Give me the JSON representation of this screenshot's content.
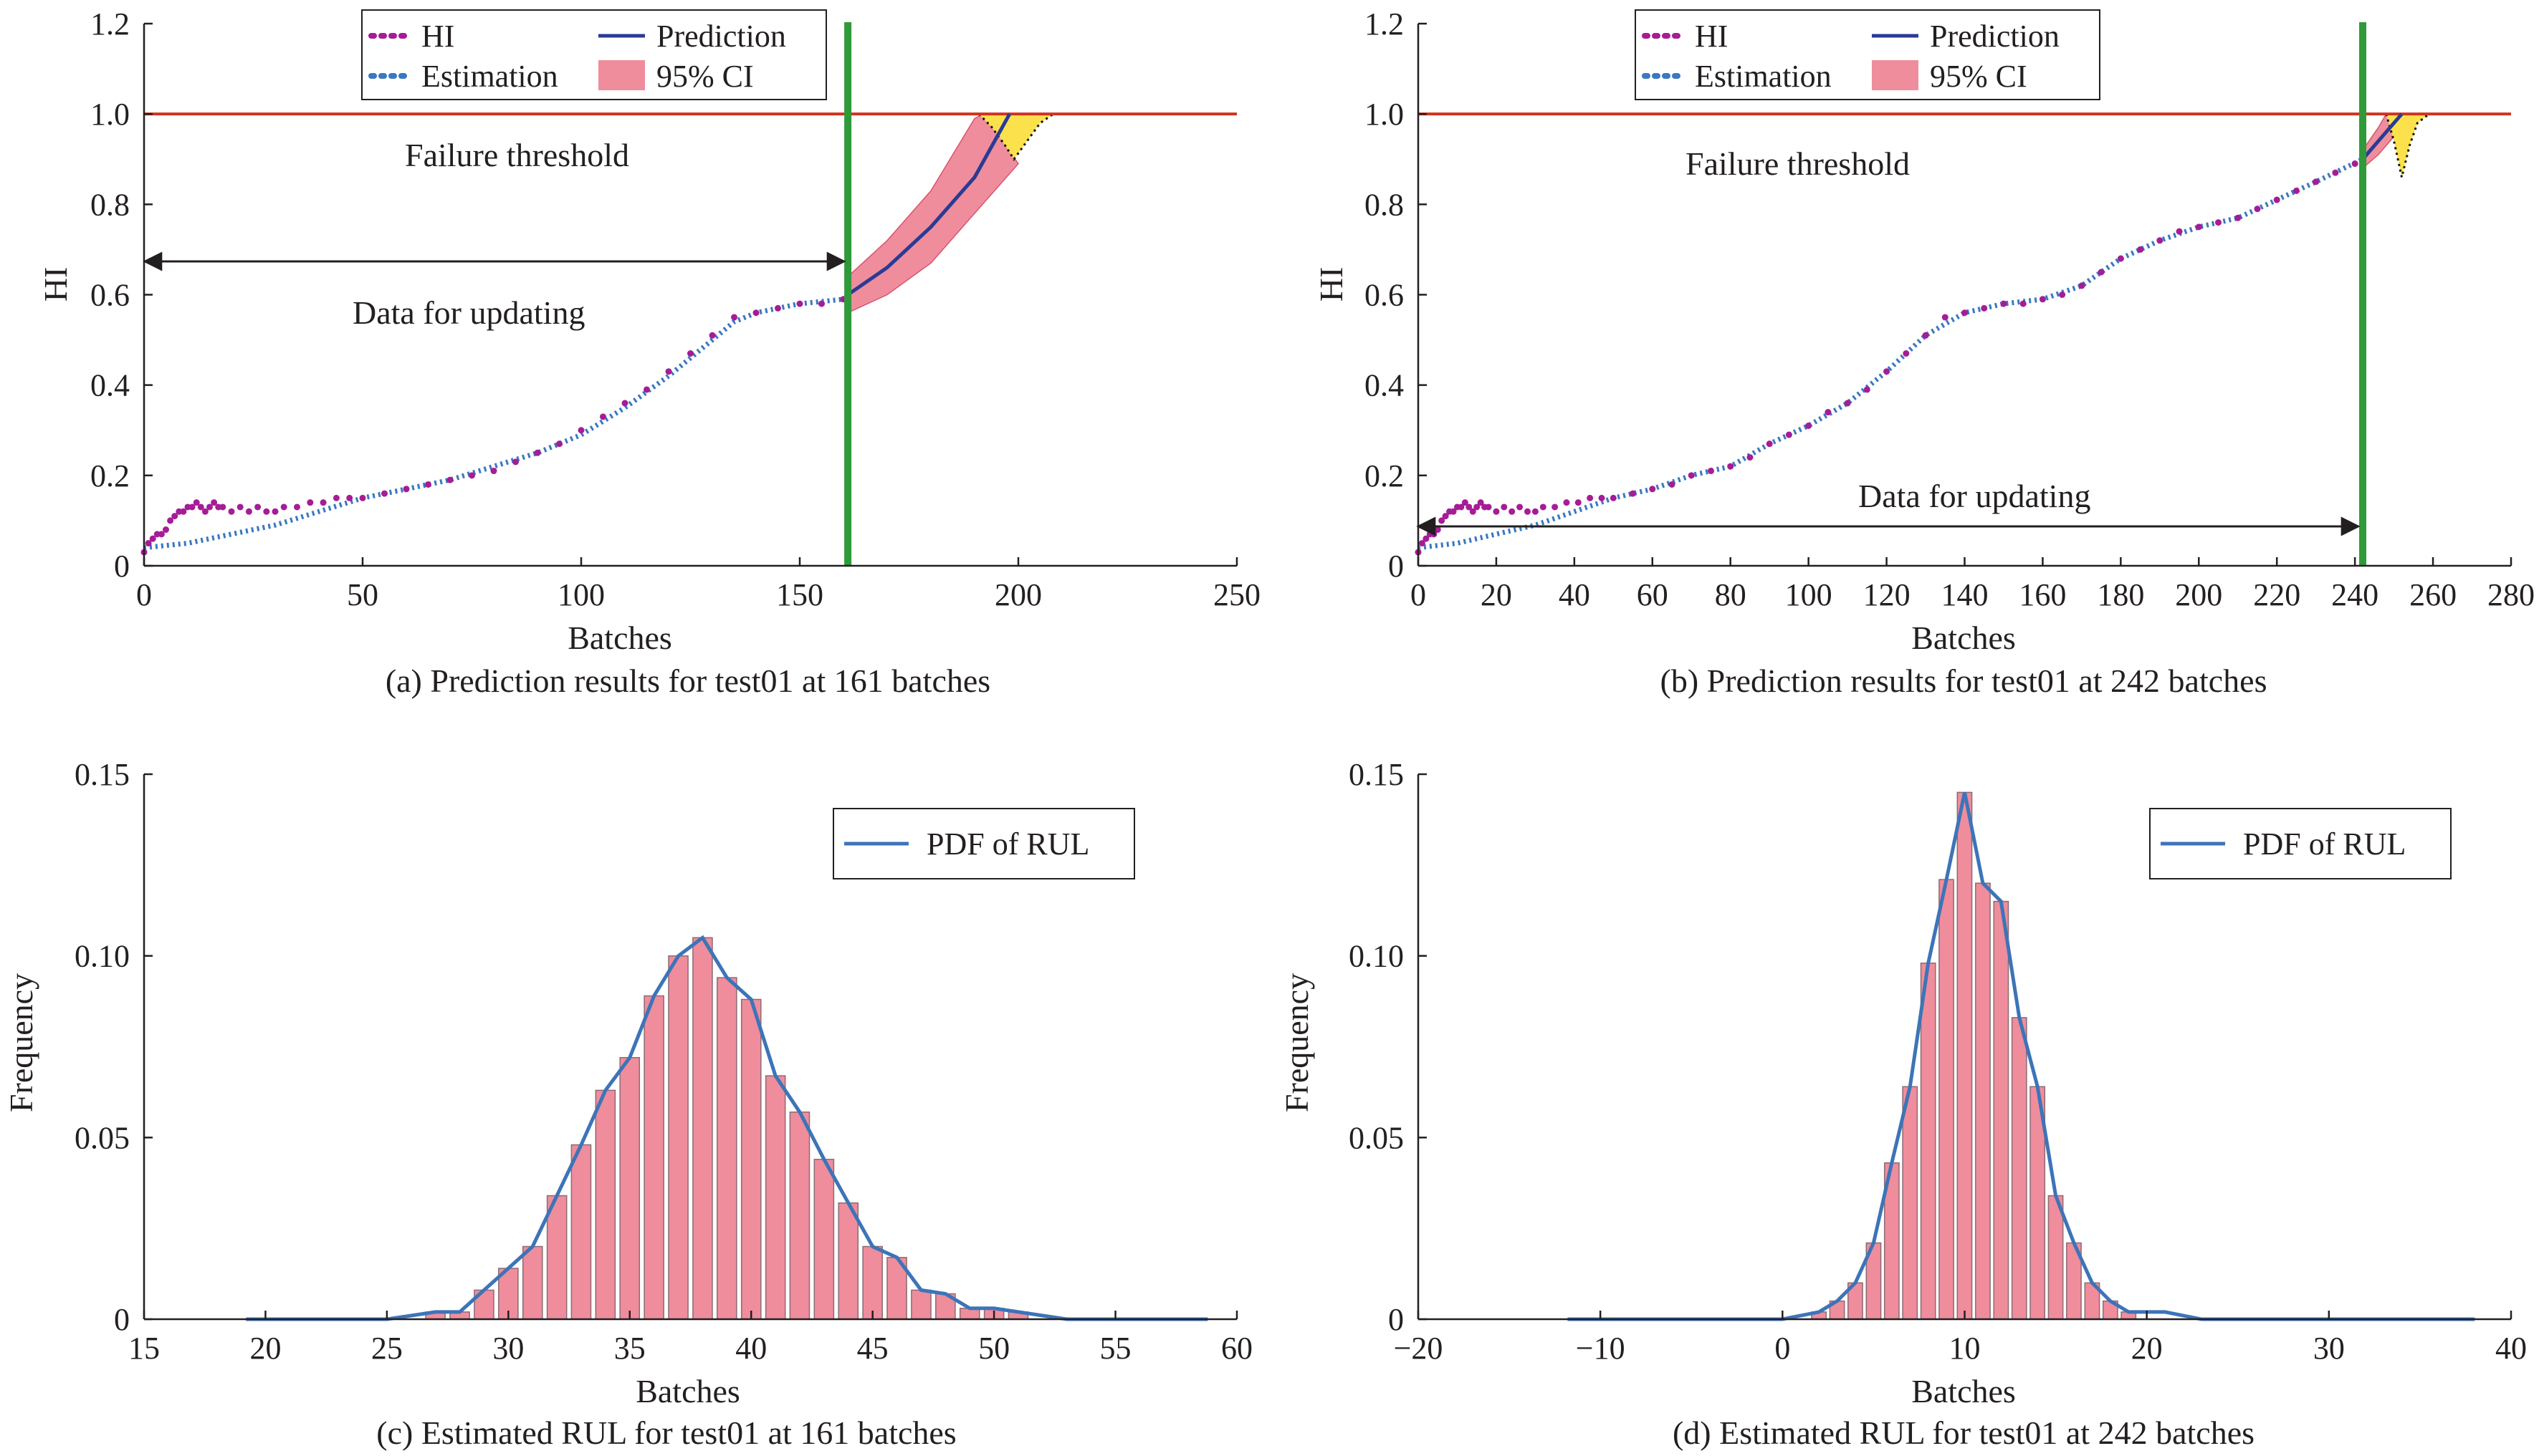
{
  "colors": {
    "hi": "#a61c96",
    "estimation": "#3a78c2",
    "prediction": "#2a3b93",
    "ci_fill": "#ef8d9d",
    "ci_edge": "#d9556c",
    "pdf_fill": "#fbe24d",
    "threshold": "#d0331e",
    "cutoff": "#2f9a3a",
    "hist_fill": "#ef8d9d",
    "hist_edge": "#8c6a72",
    "pdf_line": "#3d74b8",
    "axis": "#231f20"
  },
  "chart_data": [
    {
      "id": "a",
      "type": "line",
      "caption": "(a) Prediction results for test01 at 161 batches",
      "xlabel": "Batches",
      "ylabel": "HI",
      "xlim": [
        0,
        250
      ],
      "ylim": [
        0,
        1.2
      ],
      "xticks": [
        0,
        50,
        100,
        150,
        200,
        250
      ],
      "xtick_labels": [
        "0",
        "50",
        "100",
        "150",
        "200",
        "250"
      ],
      "yticks": [
        0,
        0.2,
        0.4,
        0.6,
        0.8,
        1.0,
        1.2
      ],
      "ytick_labels": [
        "0",
        "0.2",
        "0.4",
        "0.6",
        "0.8",
        "1.0",
        "1.2"
      ],
      "legend": [
        "HI",
        "Prediction",
        "Estimation",
        "95% CI"
      ],
      "annotations": [
        "Failure threshold",
        "Data for updating"
      ],
      "failure_threshold": 1.0,
      "update_batch": 161,
      "hi_points": [
        [
          0,
          0.03
        ],
        [
          1,
          0.05
        ],
        [
          2,
          0.06
        ],
        [
          3,
          0.07
        ],
        [
          4,
          0.07
        ],
        [
          5,
          0.08
        ],
        [
          6,
          0.1
        ],
        [
          7,
          0.11
        ],
        [
          8,
          0.12
        ],
        [
          9,
          0.12
        ],
        [
          10,
          0.13
        ],
        [
          11,
          0.13
        ],
        [
          12,
          0.14
        ],
        [
          13,
          0.13
        ],
        [
          14,
          0.12
        ],
        [
          15,
          0.13
        ],
        [
          16,
          0.14
        ],
        [
          17,
          0.13
        ],
        [
          18,
          0.13
        ],
        [
          20,
          0.12
        ],
        [
          22,
          0.13
        ],
        [
          24,
          0.12
        ],
        [
          26,
          0.13
        ],
        [
          28,
          0.12
        ],
        [
          30,
          0.12
        ],
        [
          32,
          0.13
        ],
        [
          35,
          0.13
        ],
        [
          38,
          0.14
        ],
        [
          41,
          0.14
        ],
        [
          44,
          0.15
        ],
        [
          47,
          0.15
        ],
        [
          50,
          0.15
        ],
        [
          55,
          0.16
        ],
        [
          60,
          0.17
        ],
        [
          65,
          0.18
        ],
        [
          70,
          0.19
        ],
        [
          75,
          0.2
        ],
        [
          80,
          0.21
        ],
        [
          85,
          0.23
        ],
        [
          90,
          0.25
        ],
        [
          95,
          0.27
        ],
        [
          100,
          0.3
        ],
        [
          105,
          0.33
        ],
        [
          110,
          0.36
        ],
        [
          115,
          0.39
        ],
        [
          120,
          0.43
        ],
        [
          125,
          0.47
        ],
        [
          130,
          0.51
        ],
        [
          135,
          0.55
        ],
        [
          140,
          0.56
        ],
        [
          145,
          0.57
        ],
        [
          150,
          0.58
        ],
        [
          155,
          0.58
        ],
        [
          160,
          0.59
        ]
      ],
      "estimation": [
        [
          0,
          0.04
        ],
        [
          10,
          0.05
        ],
        [
          20,
          0.07
        ],
        [
          30,
          0.09
        ],
        [
          40,
          0.12
        ],
        [
          50,
          0.15
        ],
        [
          60,
          0.17
        ],
        [
          70,
          0.19
        ],
        [
          80,
          0.22
        ],
        [
          90,
          0.25
        ],
        [
          100,
          0.29
        ],
        [
          110,
          0.35
        ],
        [
          120,
          0.42
        ],
        [
          130,
          0.5
        ],
        [
          135,
          0.54
        ],
        [
          140,
          0.56
        ],
        [
          150,
          0.58
        ],
        [
          160,
          0.59
        ]
      ],
      "prediction": [
        [
          161,
          0.6
        ],
        [
          170,
          0.66
        ],
        [
          180,
          0.75
        ],
        [
          190,
          0.86
        ],
        [
          198,
          1.0
        ]
      ],
      "ci_upper": [
        [
          161,
          0.64
        ],
        [
          170,
          0.72
        ],
        [
          180,
          0.83
        ],
        [
          190,
          0.99
        ],
        [
          192,
          1.0
        ]
      ],
      "ci_lower": [
        [
          161,
          0.56
        ],
        [
          170,
          0.6
        ],
        [
          180,
          0.67
        ],
        [
          190,
          0.78
        ],
        [
          200,
          0.89
        ]
      ],
      "rul_pdf": [
        [
          191,
          1.0
        ],
        [
          194,
          0.97
        ],
        [
          197,
          0.93
        ],
        [
          199,
          0.9
        ],
        [
          202,
          0.94
        ],
        [
          205,
          0.98
        ],
        [
          208,
          1.0
        ]
      ]
    },
    {
      "id": "b",
      "type": "line",
      "caption": "(b) Prediction results for test01 at 242 batches",
      "xlabel": "Batches",
      "ylabel": "HI",
      "xlim": [
        0,
        280
      ],
      "ylim": [
        0,
        1.2
      ],
      "xticks": [
        0,
        20,
        40,
        60,
        80,
        100,
        120,
        140,
        160,
        180,
        200,
        220,
        240,
        260,
        280
      ],
      "xtick_labels": [
        "0",
        "20",
        "40",
        "60",
        "80",
        "100",
        "120",
        "140",
        "160",
        "180",
        "200",
        "220",
        "240",
        "260",
        "280"
      ],
      "yticks": [
        0,
        0.2,
        0.4,
        0.6,
        0.8,
        1.0,
        1.2
      ],
      "ytick_labels": [
        "0",
        "0.2",
        "0.4",
        "0.6",
        "0.8",
        "1.0",
        "1.2"
      ],
      "legend": [
        "HI",
        "Prediction",
        "Estimation",
        "95% CI"
      ],
      "annotations": [
        "Failure threshold",
        "Data for updating"
      ],
      "failure_threshold": 1.0,
      "update_batch": 242,
      "hi_points": [
        [
          0,
          0.03
        ],
        [
          1,
          0.05
        ],
        [
          2,
          0.06
        ],
        [
          3,
          0.07
        ],
        [
          4,
          0.07
        ],
        [
          5,
          0.08
        ],
        [
          6,
          0.1
        ],
        [
          7,
          0.11
        ],
        [
          8,
          0.12
        ],
        [
          9,
          0.12
        ],
        [
          10,
          0.13
        ],
        [
          11,
          0.13
        ],
        [
          12,
          0.14
        ],
        [
          13,
          0.13
        ],
        [
          14,
          0.12
        ],
        [
          15,
          0.13
        ],
        [
          16,
          0.14
        ],
        [
          17,
          0.13
        ],
        [
          18,
          0.13
        ],
        [
          20,
          0.12
        ],
        [
          22,
          0.13
        ],
        [
          24,
          0.12
        ],
        [
          26,
          0.13
        ],
        [
          28,
          0.12
        ],
        [
          30,
          0.12
        ],
        [
          32,
          0.13
        ],
        [
          35,
          0.13
        ],
        [
          38,
          0.14
        ],
        [
          41,
          0.14
        ],
        [
          44,
          0.15
        ],
        [
          47,
          0.15
        ],
        [
          50,
          0.15
        ],
        [
          55,
          0.16
        ],
        [
          60,
          0.17
        ],
        [
          65,
          0.18
        ],
        [
          70,
          0.2
        ],
        [
          75,
          0.21
        ],
        [
          80,
          0.22
        ],
        [
          85,
          0.24
        ],
        [
          90,
          0.27
        ],
        [
          95,
          0.29
        ],
        [
          100,
          0.31
        ],
        [
          105,
          0.34
        ],
        [
          110,
          0.36
        ],
        [
          115,
          0.39
        ],
        [
          120,
          0.43
        ],
        [
          125,
          0.47
        ],
        [
          130,
          0.51
        ],
        [
          135,
          0.55
        ],
        [
          140,
          0.56
        ],
        [
          145,
          0.57
        ],
        [
          150,
          0.58
        ],
        [
          155,
          0.58
        ],
        [
          160,
          0.59
        ],
        [
          165,
          0.6
        ],
        [
          170,
          0.62
        ],
        [
          175,
          0.65
        ],
        [
          180,
          0.68
        ],
        [
          185,
          0.7
        ],
        [
          190,
          0.72
        ],
        [
          195,
          0.74
        ],
        [
          200,
          0.75
        ],
        [
          205,
          0.76
        ],
        [
          210,
          0.77
        ],
        [
          215,
          0.79
        ],
        [
          220,
          0.81
        ],
        [
          225,
          0.83
        ],
        [
          230,
          0.85
        ],
        [
          235,
          0.87
        ],
        [
          240,
          0.89
        ],
        [
          242,
          0.9
        ]
      ],
      "estimation": [
        [
          0,
          0.04
        ],
        [
          10,
          0.05
        ],
        [
          20,
          0.07
        ],
        [
          30,
          0.09
        ],
        [
          40,
          0.12
        ],
        [
          50,
          0.15
        ],
        [
          60,
          0.17
        ],
        [
          70,
          0.2
        ],
        [
          80,
          0.22
        ],
        [
          90,
          0.27
        ],
        [
          100,
          0.31
        ],
        [
          110,
          0.36
        ],
        [
          120,
          0.43
        ],
        [
          130,
          0.51
        ],
        [
          140,
          0.56
        ],
        [
          150,
          0.58
        ],
        [
          160,
          0.59
        ],
        [
          170,
          0.62
        ],
        [
          180,
          0.68
        ],
        [
          190,
          0.72
        ],
        [
          200,
          0.75
        ],
        [
          210,
          0.77
        ],
        [
          220,
          0.81
        ],
        [
          230,
          0.85
        ],
        [
          242,
          0.9
        ]
      ],
      "prediction": [
        [
          242,
          0.9
        ],
        [
          246,
          0.94
        ],
        [
          250,
          0.98
        ],
        [
          252,
          1.0
        ]
      ],
      "ci_upper": [
        [
          242,
          0.92
        ],
        [
          246,
          0.97
        ],
        [
          248,
          1.0
        ]
      ],
      "ci_lower": [
        [
          242,
          0.88
        ],
        [
          246,
          0.91
        ],
        [
          250,
          0.95
        ],
        [
          254,
          0.98
        ],
        [
          256,
          1.0
        ]
      ],
      "rul_pdf": [
        [
          248,
          1.0
        ],
        [
          250,
          0.94
        ],
        [
          252,
          0.86
        ],
        [
          254,
          0.93
        ],
        [
          256,
          0.98
        ],
        [
          259,
          1.0
        ]
      ]
    },
    {
      "id": "c",
      "type": "bar",
      "caption": "(c) Estimated RUL for test01 at 161 batches",
      "xlabel": "Batches",
      "ylabel": "Frequency",
      "xlim": [
        15,
        60
      ],
      "ylim": [
        0,
        0.15
      ],
      "xticks": [
        15,
        20,
        25,
        30,
        35,
        40,
        45,
        50,
        55,
        60
      ],
      "xtick_labels": [
        "15",
        "20",
        "25",
        "30",
        "35",
        "40",
        "45",
        "50",
        "55",
        "60"
      ],
      "yticks": [
        0,
        0.05,
        0.1,
        0.15
      ],
      "ytick_labels": [
        "0",
        "0.05",
        "0.10",
        "0.15"
      ],
      "legend": [
        "PDF of RUL"
      ],
      "bar_width": 0.8,
      "x": [
        27,
        28,
        29,
        30,
        31,
        32,
        33,
        34,
        35,
        36,
        37,
        38,
        39,
        40,
        41,
        42,
        43,
        44,
        45,
        46,
        47,
        48,
        49,
        50,
        51
      ],
      "values": [
        0.002,
        0.002,
        0.008,
        0.014,
        0.02,
        0.034,
        0.048,
        0.063,
        0.072,
        0.089,
        0.1,
        0.105,
        0.094,
        0.088,
        0.067,
        0.057,
        0.044,
        0.032,
        0.02,
        0.017,
        0.008,
        0.007,
        0.003,
        0.003,
        0.002
      ],
      "pdf": [
        [
          19.2,
          0
        ],
        [
          25,
          0
        ],
        [
          27,
          0.002
        ],
        [
          28,
          0.002
        ],
        [
          29,
          0.008
        ],
        [
          30,
          0.014
        ],
        [
          31,
          0.02
        ],
        [
          32,
          0.034
        ],
        [
          33,
          0.048
        ],
        [
          34,
          0.063
        ],
        [
          35,
          0.072
        ],
        [
          36,
          0.089
        ],
        [
          37,
          0.1
        ],
        [
          38,
          0.105
        ],
        [
          39,
          0.094
        ],
        [
          40,
          0.088
        ],
        [
          41,
          0.067
        ],
        [
          42,
          0.057
        ],
        [
          43,
          0.044
        ],
        [
          44,
          0.032
        ],
        [
          45,
          0.02
        ],
        [
          46,
          0.017
        ],
        [
          47,
          0.008
        ],
        [
          48,
          0.007
        ],
        [
          49,
          0.003
        ],
        [
          50,
          0.003
        ],
        [
          51,
          0.002
        ],
        [
          53,
          0
        ],
        [
          58.8,
          0
        ]
      ]
    },
    {
      "id": "d",
      "type": "bar",
      "caption": "(d) Estimated RUL for test01 at 242 batches",
      "xlabel": "Batches",
      "ylabel": "Frequency",
      "xlim": [
        -20,
        40
      ],
      "ylim": [
        0,
        0.15
      ],
      "xticks": [
        -20,
        -10,
        0,
        10,
        20,
        30,
        40
      ],
      "xtick_labels": [
        "−20",
        "−10",
        "0",
        "10",
        "20",
        "30",
        "40"
      ],
      "yticks": [
        0,
        0.05,
        0.1,
        0.15
      ],
      "ytick_labels": [
        "0",
        "0.05",
        "0.10",
        "0.15"
      ],
      "legend": [
        "PDF of RUL"
      ],
      "bar_width": 0.8,
      "x": [
        2,
        3,
        4,
        5,
        6,
        7,
        8,
        9,
        10,
        11,
        12,
        13,
        14,
        15,
        16,
        17,
        18,
        19
      ],
      "values": [
        0.002,
        0.005,
        0.01,
        0.021,
        0.043,
        0.064,
        0.098,
        0.121,
        0.145,
        0.12,
        0.115,
        0.083,
        0.064,
        0.034,
        0.021,
        0.01,
        0.005,
        0.002
      ],
      "pdf": [
        [
          -11.8,
          0
        ],
        [
          0,
          0
        ],
        [
          2,
          0.002
        ],
        [
          3,
          0.005
        ],
        [
          4,
          0.01
        ],
        [
          5,
          0.021
        ],
        [
          6,
          0.043
        ],
        [
          7,
          0.064
        ],
        [
          8,
          0.098
        ],
        [
          9,
          0.121
        ],
        [
          10,
          0.145
        ],
        [
          11,
          0.12
        ],
        [
          12,
          0.115
        ],
        [
          13,
          0.083
        ],
        [
          14,
          0.064
        ],
        [
          15,
          0.034
        ],
        [
          16,
          0.021
        ],
        [
          17,
          0.01
        ],
        [
          18,
          0.005
        ],
        [
          19,
          0.002
        ],
        [
          21,
          0.002
        ],
        [
          23,
          0
        ],
        [
          38,
          0
        ]
      ]
    }
  ]
}
